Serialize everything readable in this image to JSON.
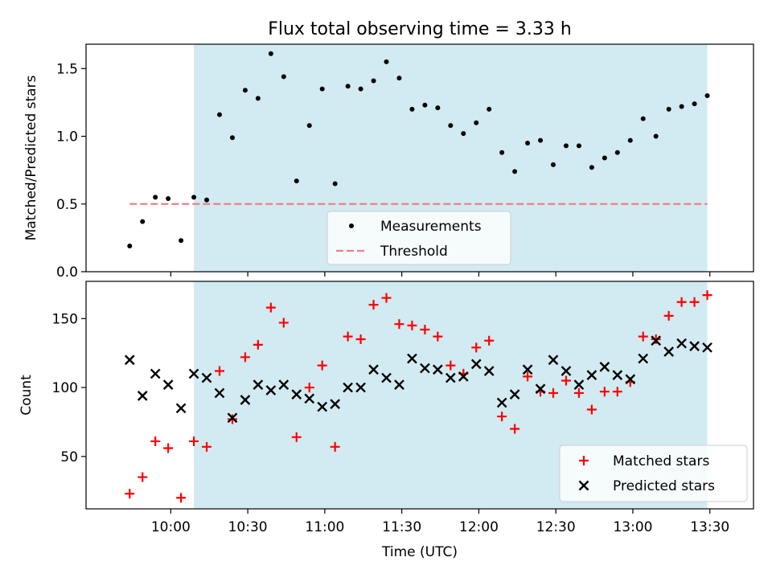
{
  "chart_data": {
    "title": "Flux total observing time = 3.33 h",
    "xlabel": "Time (UTC)",
    "x_ticks": [
      "10:00",
      "10:30",
      "11:00",
      "11:30",
      "12:00",
      "12:30",
      "13:00",
      "13:30"
    ],
    "x_tick_minutes": [
      600,
      630,
      660,
      690,
      720,
      750,
      780,
      810
    ],
    "observing_window": {
      "start": "10:09",
      "end": "13:29",
      "color": "#add8e6"
    },
    "panels": [
      {
        "type": "scatter",
        "ylabel": "Matched/Predicted stars",
        "ylim": [
          0.0,
          1.68
        ],
        "yticks": [
          "0.0",
          "0.5",
          "1.0",
          "1.5"
        ],
        "ytick_values": [
          0.0,
          0.5,
          1.0,
          1.5
        ],
        "legend_position": "lower center",
        "series": [
          {
            "name": "Measurements",
            "marker": "dot",
            "color": "#000000",
            "x": [
              "09:44",
              "09:49",
              "09:54",
              "09:59",
              "10:04",
              "10:09",
              "10:14",
              "10:19",
              "10:24",
              "10:29",
              "10:34",
              "10:39",
              "10:44",
              "10:49",
              "10:54",
              "10:59",
              "11:04",
              "11:09",
              "11:14",
              "11:19",
              "11:24",
              "11:29",
              "11:34",
              "11:39",
              "11:44",
              "11:49",
              "11:54",
              "11:59",
              "12:04",
              "12:09",
              "12:14",
              "12:19",
              "12:24",
              "12:29",
              "12:34",
              "12:39",
              "12:44",
              "12:49",
              "12:54",
              "12:59",
              "13:04",
              "13:09",
              "13:14",
              "13:19",
              "13:24",
              "13:29"
            ],
            "y": [
              0.19,
              0.37,
              0.55,
              0.54,
              0.23,
              0.55,
              0.53,
              1.16,
              0.99,
              1.34,
              1.28,
              1.61,
              1.44,
              0.67,
              1.08,
              1.35,
              0.65,
              1.37,
              1.35,
              1.41,
              1.55,
              1.43,
              1.2,
              1.23,
              1.21,
              1.08,
              1.02,
              1.1,
              1.2,
              0.88,
              0.74,
              0.95,
              0.97,
              0.79,
              0.93,
              0.93,
              0.77,
              0.84,
              0.88,
              0.97,
              1.13,
              1.0,
              1.2,
              1.22,
              1.24,
              1.3
            ]
          },
          {
            "name": "Threshold",
            "marker": "dashed-line",
            "color": "#f08080",
            "x": [
              "09:44",
              "13:29"
            ],
            "y": [
              0.5,
              0.5
            ]
          }
        ]
      },
      {
        "type": "scatter",
        "ylabel": "Count",
        "ylim": [
          12,
          177
        ],
        "yticks": [
          "50",
          "100",
          "150"
        ],
        "ytick_values": [
          50,
          100,
          150
        ],
        "legend_position": "lower right",
        "series": [
          {
            "name": "Matched stars",
            "marker": "plus",
            "color": "#ff0000",
            "x": [
              "09:44",
              "09:49",
              "09:54",
              "09:59",
              "10:04",
              "10:09",
              "10:14",
              "10:19",
              "10:24",
              "10:29",
              "10:34",
              "10:39",
              "10:44",
              "10:49",
              "10:54",
              "10:59",
              "11:04",
              "11:09",
              "11:14",
              "11:19",
              "11:24",
              "11:29",
              "11:34",
              "11:39",
              "11:44",
              "11:49",
              "11:54",
              "11:59",
              "12:04",
              "12:09",
              "12:14",
              "12:19",
              "12:24",
              "12:29",
              "12:34",
              "12:39",
              "12:44",
              "12:49",
              "12:54",
              "12:59",
              "13:04",
              "13:09",
              "13:14",
              "13:19",
              "13:24",
              "13:29"
            ],
            "y": [
              23,
              35,
              61,
              56,
              20,
              61,
              57,
              112,
              77,
              122,
              131,
              158,
              147,
              64,
              100,
              116,
              57,
              137,
              135,
              160,
              165,
              146,
              145,
              142,
              137,
              116,
              110,
              129,
              134,
              79,
              70,
              108,
              97,
              96,
              105,
              96,
              84,
              97,
              97,
              104,
              137,
              135,
              152,
              162,
              162,
              167
            ]
          },
          {
            "name": "Predicted stars",
            "marker": "x",
            "color": "#000000",
            "x": [
              "09:44",
              "09:49",
              "09:54",
              "09:59",
              "10:04",
              "10:09",
              "10:14",
              "10:19",
              "10:24",
              "10:29",
              "10:34",
              "10:39",
              "10:44",
              "10:49",
              "10:54",
              "10:59",
              "11:04",
              "11:09",
              "11:14",
              "11:19",
              "11:24",
              "11:29",
              "11:34",
              "11:39",
              "11:44",
              "11:49",
              "11:54",
              "11:59",
              "12:04",
              "12:09",
              "12:14",
              "12:19",
              "12:24",
              "12:29",
              "12:34",
              "12:39",
              "12:44",
              "12:49",
              "12:54",
              "12:59",
              "13:04",
              "13:09",
              "13:14",
              "13:19",
              "13:24",
              "13:29"
            ],
            "y": [
              120,
              94,
              110,
              102,
              85,
              110,
              107,
              96,
              78,
              91,
              102,
              98,
              102,
              95,
              92,
              86,
              88,
              100,
              100,
              113,
              107,
              102,
              121,
              114,
              113,
              107,
              108,
              117,
              112,
              89,
              95,
              113,
              99,
              120,
              112,
              102,
              109,
              115,
              109,
              106,
              121,
              134,
              126,
              132,
              130,
              129
            ]
          }
        ]
      }
    ]
  }
}
